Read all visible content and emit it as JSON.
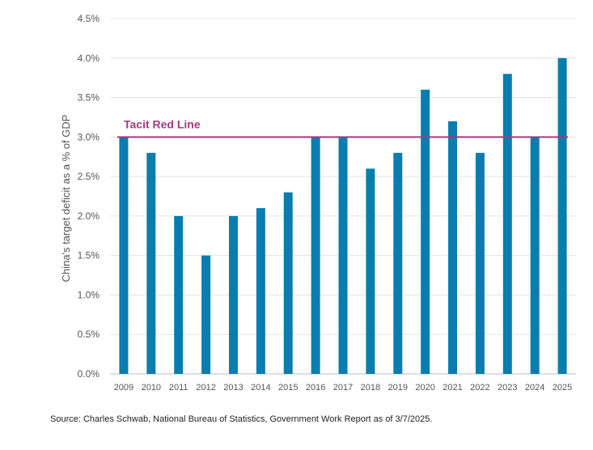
{
  "chart_data": {
    "type": "bar",
    "categories": [
      "2009",
      "2010",
      "2011",
      "2012",
      "2013",
      "2014",
      "2015",
      "2016",
      "2017",
      "2018",
      "2019",
      "2020",
      "2021",
      "2022",
      "2023",
      "2024",
      "2025"
    ],
    "values": [
      3.0,
      2.8,
      2.0,
      1.5,
      2.0,
      2.1,
      2.3,
      3.0,
      3.0,
      2.6,
      2.8,
      3.6,
      3.2,
      2.8,
      3.8,
      3.0,
      4.0
    ],
    "ylabel": "China's target deficit as a % of GDP",
    "ylim": [
      0,
      4.5
    ],
    "yticks": [
      "0.0%",
      "0.5%",
      "1.0%",
      "1.5%",
      "2.0%",
      "2.5%",
      "3.0%",
      "3.5%",
      "4.0%",
      "4.5%"
    ],
    "ytick_values": [
      0,
      0.5,
      1.0,
      1.5,
      2.0,
      2.5,
      3.0,
      3.5,
      4.0,
      4.5
    ],
    "grid": true,
    "reference_line": {
      "value": 3.0,
      "label": "Tacit Red Line",
      "color": "#a23b7d"
    },
    "bar_color": "#0a7db0"
  },
  "source": "Source: Charles Schwab, National Bureau of Statistics, Government Work Report as of 3/7/2025."
}
